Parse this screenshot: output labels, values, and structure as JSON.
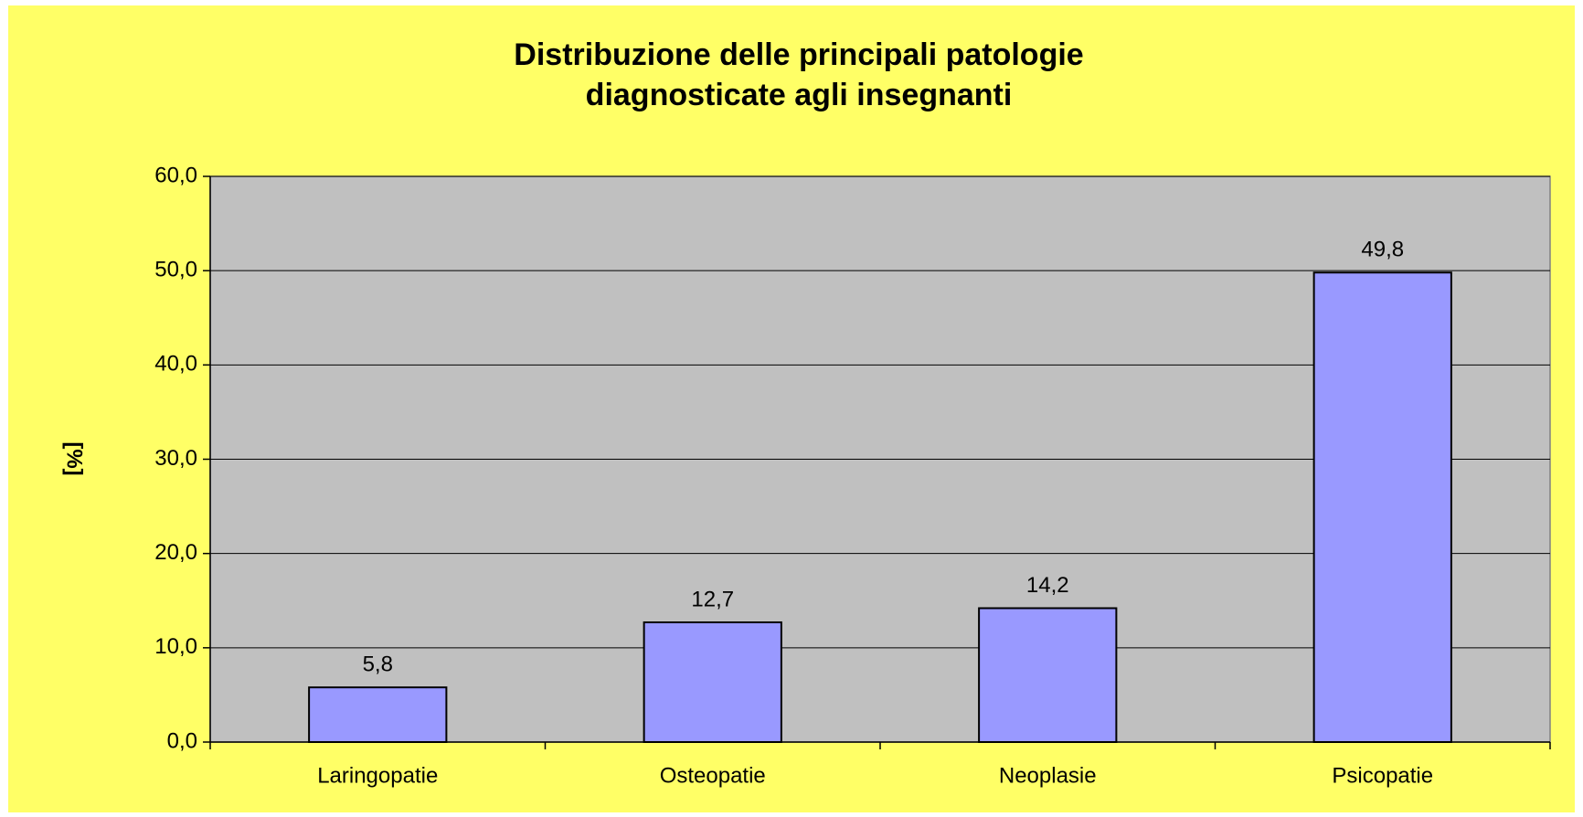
{
  "chart_data": {
    "type": "bar",
    "title": [
      "Distribuzione delle principali patologie",
      "diagnosticate agli insegnanti"
    ],
    "y_label": "[%]",
    "categories": [
      "Laringopatie",
      "Osteopatie",
      "Neoplasie",
      "Psicopatie"
    ],
    "values": [
      5.8,
      12.7,
      14.2,
      49.8
    ],
    "value_labels": [
      "5,8",
      "12,7",
      "14,2",
      "49,8"
    ],
    "color": "#9999ff",
    "ylim": [
      0,
      60
    ],
    "yticks": [
      {
        "value": 0,
        "label": "0,0"
      },
      {
        "value": 10,
        "label": "10,0"
      },
      {
        "value": 20,
        "label": "20,0"
      },
      {
        "value": 30,
        "label": "30,0"
      },
      {
        "value": 40,
        "label": "40,0"
      },
      {
        "value": 50,
        "label": "50,0"
      },
      {
        "value": 60,
        "label": "60,0"
      }
    ],
    "grid": true
  }
}
